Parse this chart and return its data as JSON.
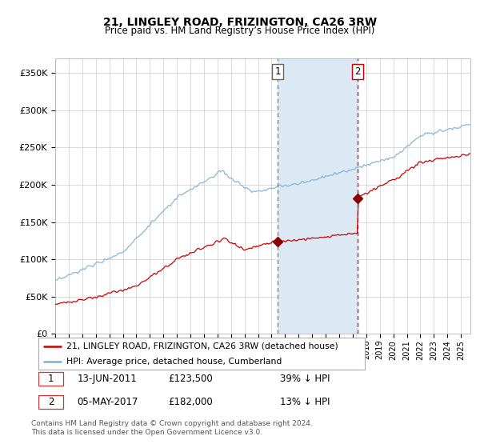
{
  "title": "21, LINGLEY ROAD, FRIZINGTON, CA26 3RW",
  "subtitle": "Price paid vs. HM Land Registry’s House Price Index (HPI)",
  "ylim": [
    0,
    370000
  ],
  "xlim_start": 1995.0,
  "xlim_end": 2025.7,
  "sale1_date": 2011.45,
  "sale1_price": 123500,
  "sale2_date": 2017.37,
  "sale2_price": 182000,
  "sale1_label": "1",
  "sale2_label": "2",
  "legend_property": "21, LINGLEY ROAD, FRIZINGTON, CA26 3RW (detached house)",
  "legend_hpi": "HPI: Average price, detached house, Cumberland",
  "footnote": "Contains HM Land Registry data © Crown copyright and database right 2024.\nThis data is licensed under the Open Government Licence v3.0.",
  "hpi_color": "#7bafd4",
  "property_color": "#cc0000",
  "shading_color": "#dce9f5",
  "grid_color": "#cccccc",
  "vline1_color": "#777777",
  "vline2_color": "#cc0000"
}
